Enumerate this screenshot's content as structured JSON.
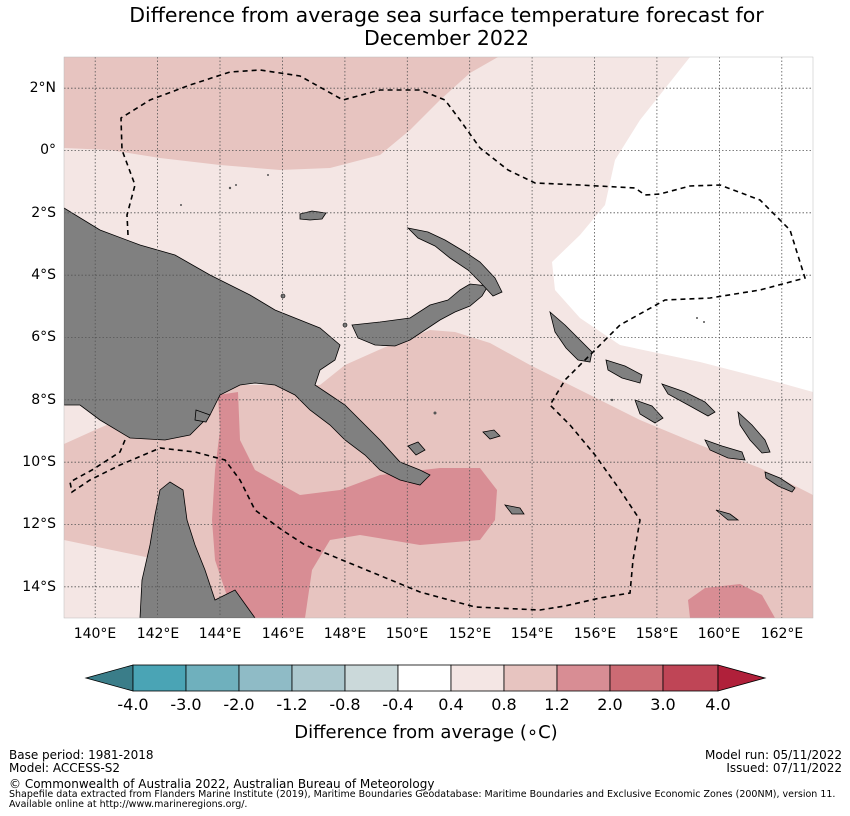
{
  "title_line1": "Difference from average sea surface temperature forecast for",
  "title_line2": "December 2022",
  "lat_labels": [
    "2°N",
    "0°",
    "2°S",
    "4°S",
    "6°S",
    "8°S",
    "10°S",
    "12°S",
    "14°S"
  ],
  "lon_labels": [
    "140°E",
    "142°E",
    "144°E",
    "146°E",
    "148°E",
    "150°E",
    "152°E",
    "154°E",
    "156°E",
    "158°E",
    "160°E",
    "162°E"
  ],
  "map": {
    "lon_range": [
      139,
      163
    ],
    "lat_range": [
      -15,
      3
    ],
    "gridlines": "dotted",
    "land_color": "#808080",
    "eez_boundary": "dashed black line"
  },
  "legend": {
    "label": "Difference from average (∘C)",
    "ticks": [
      "-4.0",
      "-3.0",
      "-2.0",
      "-1.2",
      "-0.8",
      "-0.4",
      "0.4",
      "0.8",
      "1.2",
      "2.0",
      "3.0",
      "4.0"
    ],
    "colors": {
      "under": "#3a7d89",
      "bins": [
        "#4aa4b5",
        "#6fb0bd",
        "#8fbbc6",
        "#acc8ce",
        "#cbd9da",
        "#ffffff",
        "#f4e6e4",
        "#e7c4c0",
        "#d88d94",
        "#cc6b74",
        "#bf4556"
      ],
      "over": "#b0203a"
    }
  },
  "footer": {
    "base_period": "Base period: 1981-2018",
    "model": "Model: ACCESS-S2",
    "model_run": "Model run: 05/11/2022",
    "issued": "Issued: 07/11/2022",
    "copyright": "© Commonwealth of Australia 2022, Australian Bureau of Meteorology",
    "shapefile_line1": "Shapefile data extracted from Flanders Marine Institute (2019), Maritime Boundaries Geodatabase: Maritime Boundaries and Exclusive Economic Zones (200NM), version 11.",
    "shapefile_line2": "Available online at http://www.marineregions.org/."
  }
}
